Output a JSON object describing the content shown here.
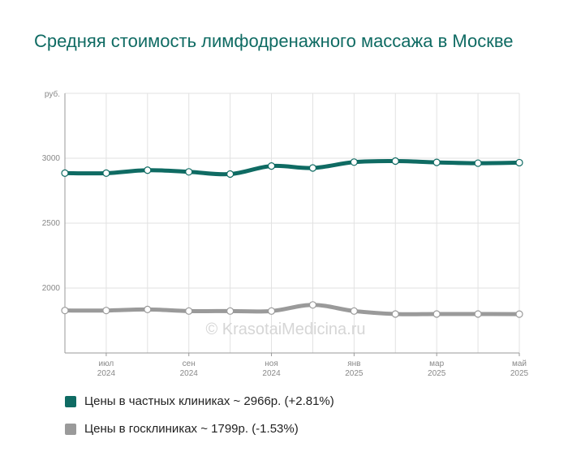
{
  "chart_data": {
    "type": "line",
    "title": "Средняя стоимость лимфодренажного массажа в Москве",
    "ylabel": "руб.",
    "ylim": [
      1500,
      3500
    ],
    "y_ticks": [
      2000,
      2500,
      3000
    ],
    "grid": true,
    "x_ticks": [
      {
        "index": 1,
        "month": "июл",
        "year": "2024"
      },
      {
        "index": 3,
        "month": "сен",
        "year": "2024"
      },
      {
        "index": 5,
        "month": "ноя",
        "year": "2024"
      },
      {
        "index": 7,
        "month": "янв",
        "year": "2025"
      },
      {
        "index": 9,
        "month": "мар",
        "year": "2025"
      },
      {
        "index": 11,
        "month": "май",
        "year": "2025"
      }
    ],
    "x": [
      "2024-06",
      "2024-07",
      "2024-08",
      "2024-09",
      "2024-10",
      "2024-11",
      "2024-12",
      "2025-01",
      "2025-02",
      "2025-03",
      "2025-04",
      "2025-05"
    ],
    "series": [
      {
        "name": "Цены в частных клиниках ~ 2966р. (+2.81%)",
        "color": "#0f6b63",
        "values": [
          2885,
          2885,
          2908,
          2895,
          2878,
          2940,
          2925,
          2970,
          2978,
          2968,
          2962,
          2966
        ]
      },
      {
        "name": "Цены в госклиниках ~ 1799р. (-1.53%)",
        "color": "#9a9a9a",
        "values": [
          1827,
          1827,
          1835,
          1823,
          1823,
          1823,
          1870,
          1823,
          1800,
          1800,
          1800,
          1799
        ]
      }
    ],
    "watermark": "© KrasotaiMedicina.ru",
    "legend_position": "bottom-left"
  }
}
